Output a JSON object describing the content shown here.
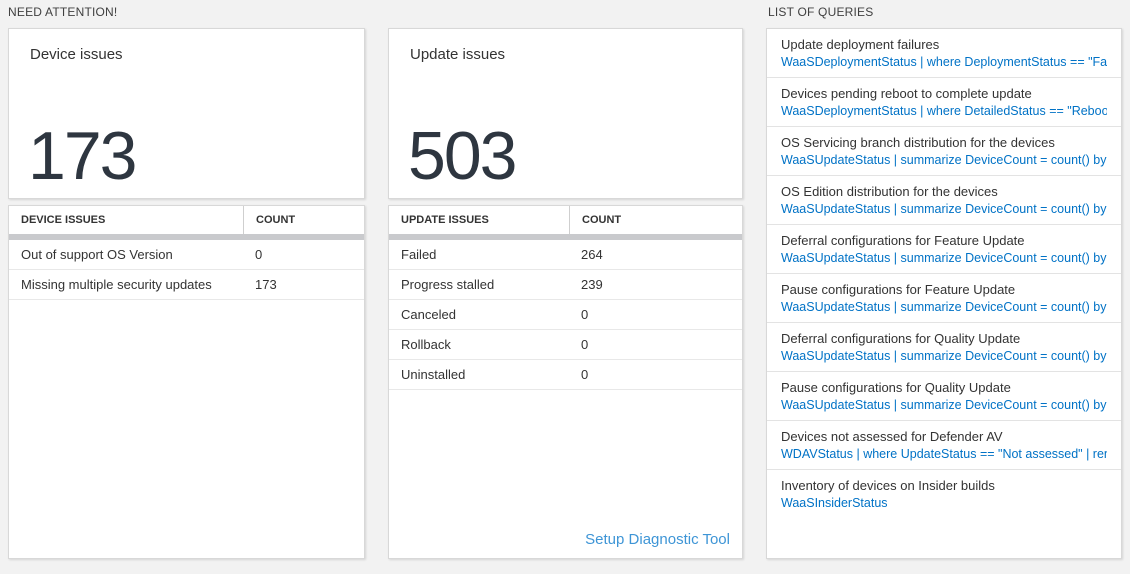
{
  "colors": {
    "page_bg": "#f2f2f2",
    "query_blue": "#0072c6",
    "link_blue": "#3e95d6",
    "kpi_number": "#2e3640"
  },
  "sections": {
    "need_attention": "NEED ATTENTION!",
    "list_of_queries": "LIST OF QUERIES"
  },
  "device_card": {
    "title": "Device issues",
    "count": "173"
  },
  "update_card": {
    "title": "Update issues",
    "count": "503"
  },
  "device_table": {
    "headers": [
      "DEVICE ISSUES",
      "COUNT"
    ],
    "rows": [
      {
        "label": "Out of support OS Version",
        "count": "0"
      },
      {
        "label": "Missing multiple security updates",
        "count": "173"
      }
    ]
  },
  "update_table": {
    "headers": [
      "UPDATE ISSUES",
      "COUNT"
    ],
    "rows": [
      {
        "label": "Failed",
        "count": "264"
      },
      {
        "label": "Progress stalled",
        "count": "239"
      },
      {
        "label": "Canceled",
        "count": "0"
      },
      {
        "label": "Rollback",
        "count": "0"
      },
      {
        "label": "Uninstalled",
        "count": "0"
      }
    ],
    "link": "Setup Diagnostic Tool"
  },
  "queries": [
    {
      "title": "Update deployment failures",
      "query": "WaaSDeploymentStatus | where DeploymentStatus == \"Failed\" |..."
    },
    {
      "title": "Devices pending reboot to complete update",
      "query": "WaaSDeploymentStatus | where DetailedStatus == \"Reboot pend..."
    },
    {
      "title": "OS Servicing branch distribution for the devices",
      "query": "WaaSUpdateStatus | summarize DeviceCount = count() by OSSer..."
    },
    {
      "title": "OS Edition distribution for the devices",
      "query": "WaaSUpdateStatus | summarize DeviceCount = count() by OSEdit..."
    },
    {
      "title": "Deferral configurations for Feature Update",
      "query": "WaaSUpdateStatus | summarize DeviceCount = count() by Featur..."
    },
    {
      "title": "Pause configurations for Feature Update",
      "query": "WaaSUpdateStatus | summarize DeviceCount = count() by Featur..."
    },
    {
      "title": "Deferral configurations for Quality Update",
      "query": "WaaSUpdateStatus | summarize DeviceCount = count() by Qualit..."
    },
    {
      "title": "Pause configurations for Quality Update",
      "query": "WaaSUpdateStatus | summarize DeviceCount = count() by Qualit..."
    },
    {
      "title": "Devices not assessed for Defender AV",
      "query": "WDAVStatus | where UpdateStatus == \"Not assessed\" | render ta..."
    },
    {
      "title": "Inventory of devices on Insider builds",
      "query": "WaaSInsiderStatus"
    }
  ]
}
